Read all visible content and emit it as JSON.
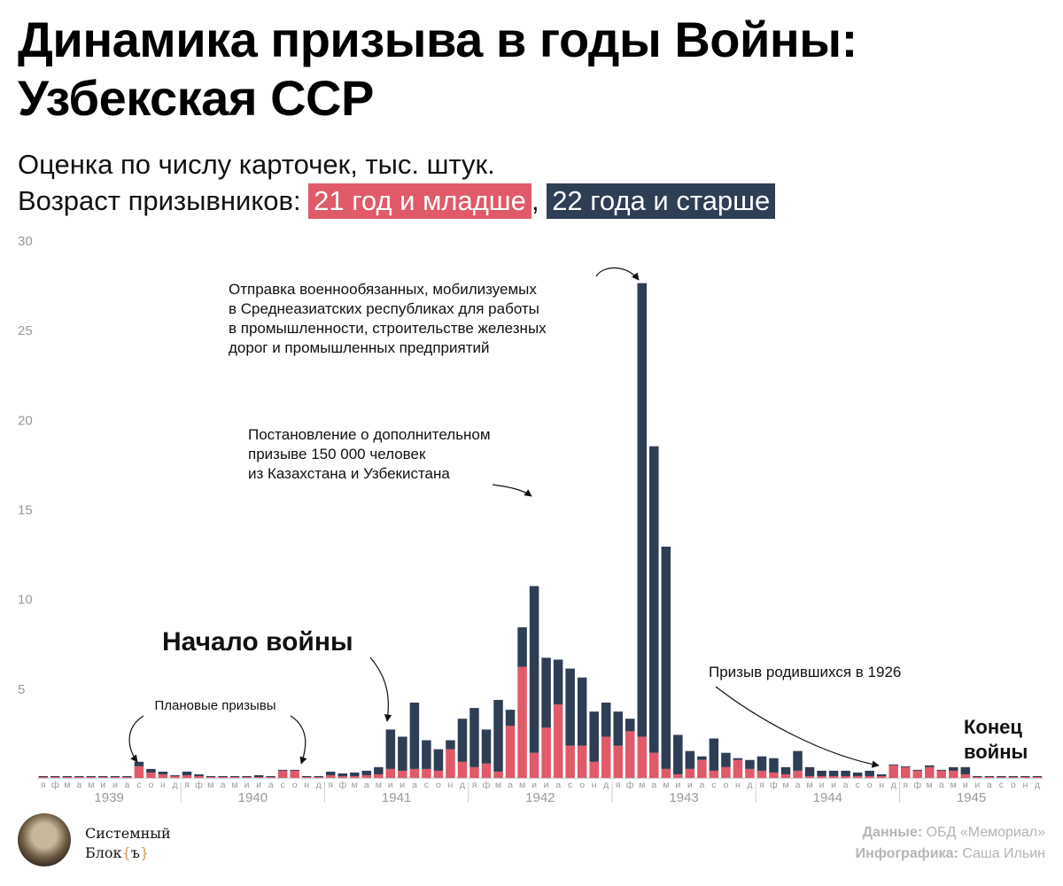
{
  "title_line1": "Динамика призыва в годы Войны:",
  "title_line2": "Узбекская ССР",
  "subtitle": "Оценка по числу карточек, тыс. штук.",
  "age_prefix": "Возраст призывников: ",
  "age_young": "21 год и младше",
  "age_sep": ",",
  "age_old": "22 года и старше",
  "colors": {
    "young": "#e05a6a",
    "old": "#2e3e54",
    "axis_text": "#9a9a9a"
  },
  "chart_data": {
    "type": "bar",
    "stacked": true,
    "ylim": [
      0,
      30
    ],
    "yticks": [
      "5",
      "10",
      "15",
      "20",
      "25",
      "30"
    ],
    "month_letters": [
      "я",
      "ф",
      "м",
      "а",
      "м",
      "и",
      "и",
      "а",
      "с",
      "о",
      "н",
      "д"
    ],
    "years": [
      "1939",
      "1940",
      "1941",
      "1942",
      "1943",
      "1944",
      "1945"
    ],
    "series": [
      {
        "name": "21 год и младше",
        "values": [
          0.05,
          0.05,
          0.05,
          0.05,
          0.05,
          0.05,
          0.05,
          0.05,
          0.65,
          0.3,
          0.2,
          0.1,
          0.15,
          0.1,
          0.05,
          0.05,
          0.05,
          0.05,
          0.05,
          0.05,
          0.4,
          0.4,
          0.05,
          0.05,
          0.15,
          0.1,
          0.1,
          0.15,
          0.2,
          0.5,
          0.4,
          0.5,
          0.5,
          0.4,
          1.6,
          0.9,
          0.6,
          0.8,
          0.35,
          2.9,
          6.2,
          1.4,
          2.8,
          4.1,
          1.8,
          1.8,
          0.9,
          2.3,
          1.8,
          2.6,
          2.3,
          1.4,
          0.5,
          0.2,
          0.5,
          1.0,
          0.4,
          0.6,
          1.0,
          0.5,
          0.4,
          0.3,
          0.2,
          0.4,
          0.1,
          0.1,
          0.1,
          0.1,
          0.1,
          0.1,
          0.1,
          0.7,
          0.6,
          0.4,
          0.6,
          0.4,
          0.4,
          0.2,
          0.05,
          0.05,
          0.05,
          0.05,
          0.05,
          0.05
        ]
      },
      {
        "name": "22 года и старше",
        "values": [
          0.05,
          0.05,
          0.05,
          0.05,
          0.05,
          0.05,
          0.05,
          0.05,
          0.25,
          0.2,
          0.15,
          0.05,
          0.2,
          0.1,
          0.05,
          0.05,
          0.05,
          0.05,
          0.1,
          0.05,
          0.05,
          0.05,
          0.05,
          0.05,
          0.2,
          0.15,
          0.2,
          0.25,
          0.4,
          2.2,
          1.9,
          3.7,
          1.6,
          1.2,
          0.5,
          2.4,
          3.3,
          1.9,
          4.0,
          0.9,
          2.2,
          9.3,
          3.9,
          2.5,
          4.3,
          3.8,
          2.8,
          1.9,
          1.9,
          0.7,
          25.3,
          17.1,
          12.4,
          2.2,
          1.0,
          0.2,
          1.8,
          0.8,
          0.1,
          0.5,
          0.8,
          0.8,
          0.4,
          1.1,
          0.5,
          0.3,
          0.3,
          0.3,
          0.2,
          0.3,
          0.1,
          0.05,
          0.05,
          0.05,
          0.1,
          0.05,
          0.2,
          0.4,
          0.05,
          0.05,
          0.05,
          0.05,
          0.05,
          0.05
        ]
      }
    ],
    "annotations": [
      {
        "id": "plan",
        "text": [
          "Плановые призывы"
        ]
      },
      {
        "id": "start",
        "text": [
          "Начало войны"
        ]
      },
      {
        "id": "decree",
        "text": [
          "Постановление о дополнительном",
          "призыве 150 000 человек",
          "из Казахстана и Узбекистана"
        ]
      },
      {
        "id": "mobil",
        "text": [
          "Отправка военнообязанных, мобилизуемых",
          "в Среднеазиатских республиках для работы",
          "в промышленности, строительстве железных",
          "дорог и промышленных предприятий"
        ]
      },
      {
        "id": "born1926",
        "text": [
          "Призыв родившихся в 1926"
        ]
      },
      {
        "id": "end",
        "text": [
          "Конец",
          "войны"
        ]
      }
    ]
  },
  "logo": {
    "line1": "Системный",
    "line2": "Блок",
    "brace_open": "{",
    "brace_char": "ъ",
    "brace_close": "}"
  },
  "credits": {
    "data_label": "Данные:",
    "data_value": " ОБД «Мемориал»",
    "graphic_label": "Инфографика:",
    "graphic_value": " Саша Ильин"
  }
}
